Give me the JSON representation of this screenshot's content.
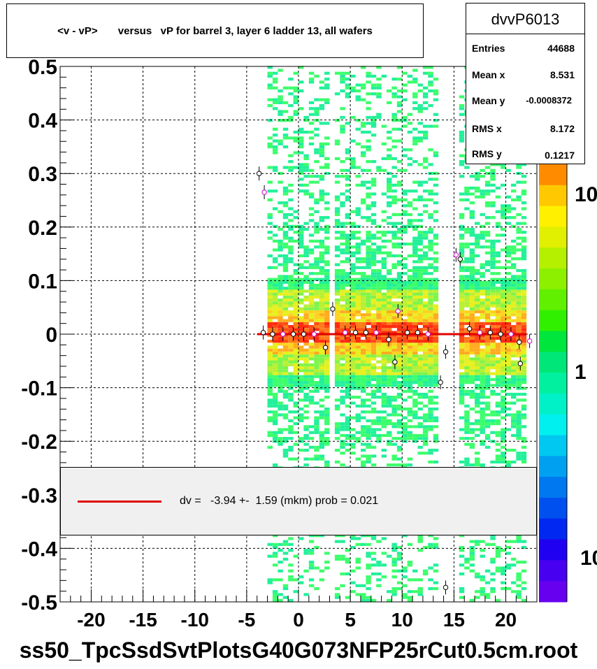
{
  "chart_data": {
    "type": "heatmap",
    "title": "<v - vP>       versus   vP for barrel 3, layer 6 ladder 13, all wafers",
    "xlabel": "",
    "ylabel": "",
    "xlim": [
      -23,
      23
    ],
    "ylim": [
      -0.5,
      0.5
    ],
    "x_ticks": [
      "-20",
      "-15",
      "-10",
      "-5",
      "0",
      "5",
      "10",
      "15",
      "20"
    ],
    "x_tick_values": [
      -20,
      -15,
      -10,
      -5,
      0,
      5,
      10,
      15,
      20
    ],
    "y_ticks": [
      "0.5",
      "0.4",
      "0.3",
      "0.2",
      "0.1",
      "0",
      "-0.1",
      "-0.2",
      "-0.3",
      "-0.4",
      "-0.5"
    ],
    "y_tick_values": [
      0.5,
      0.4,
      0.3,
      0.2,
      0.1,
      0,
      -0.1,
      -0.2,
      -0.3,
      -0.4,
      -0.5
    ],
    "grid": true,
    "z_scale": "log",
    "z_ticks": [
      "10",
      "1",
      "10"
    ],
    "fill_regions_x": [
      [
        -3,
        3
      ],
      [
        3.5,
        13.5
      ],
      [
        15.5,
        22
      ]
    ],
    "fit_line": {
      "x": [
        -4,
        22
      ],
      "y": [
        0.0,
        0.0
      ],
      "color": "#e00000"
    },
    "profile_points": [
      {
        "x": -3.8,
        "y": 0.3
      },
      {
        "x": -3.3,
        "y": 0.265
      },
      {
        "x": -3.4,
        "y": 0.003
      },
      {
        "x": -2.5,
        "y": 0.0
      },
      {
        "x": -1.5,
        "y": 0.0
      },
      {
        "x": -0.5,
        "y": 0.0
      },
      {
        "x": 0.5,
        "y": 0.0
      },
      {
        "x": 1.5,
        "y": 0.0
      },
      {
        "x": 2.6,
        "y": -0.025
      },
      {
        "x": 3.3,
        "y": 0.047
      },
      {
        "x": 4.5,
        "y": 0.003
      },
      {
        "x": 5.5,
        "y": 0.003
      },
      {
        "x": 6.5,
        "y": 0.003
      },
      {
        "x": 7.5,
        "y": 0.003
      },
      {
        "x": 8.7,
        "y": -0.01
      },
      {
        "x": 9.3,
        "y": -0.052
      },
      {
        "x": 9.6,
        "y": 0.043
      },
      {
        "x": 10.5,
        "y": 0.003
      },
      {
        "x": 11.5,
        "y": 0.003
      },
      {
        "x": 12.5,
        "y": 0.0
      },
      {
        "x": 13.7,
        "y": -0.09
      },
      {
        "x": 14.2,
        "y": -0.033
      },
      {
        "x": 15.2,
        "y": 0.148
      },
      {
        "x": 15.6,
        "y": 0.14
      },
      {
        "x": 16.5,
        "y": 0.01
      },
      {
        "x": 17.5,
        "y": 0.003
      },
      {
        "x": 18.5,
        "y": 0.003
      },
      {
        "x": 19.5,
        "y": 0.0
      },
      {
        "x": 20.5,
        "y": 0.0
      },
      {
        "x": 21.4,
        "y": -0.055
      },
      {
        "x": 21.3,
        "y": -0.015
      },
      {
        "x": 22.3,
        "y": -0.013
      },
      {
        "x": 14.2,
        "y": -0.473
      }
    ]
  },
  "title": "<v - vP>       versus   vP for barrel 3, layer 6 ladder 13, all wafers",
  "stats": {
    "name": "dvvP6013",
    "rows": [
      {
        "label": "Entries",
        "value": "44688"
      },
      {
        "label": "Mean x",
        "value": "8.531"
      },
      {
        "label": "Mean y",
        "value": "-0.0008372"
      },
      {
        "label": "RMS x",
        "value": "8.172"
      },
      {
        "label": "RMS y",
        "value": "0.1217"
      }
    ]
  },
  "legend": {
    "text": "dv =   -3.94 +-  1.59 (mkm) prob = 0.021",
    "color": "#e00000"
  },
  "footer": "ss50_TpcSsdSvtPlotsG40G073NFP25rCut0.5cm.root"
}
